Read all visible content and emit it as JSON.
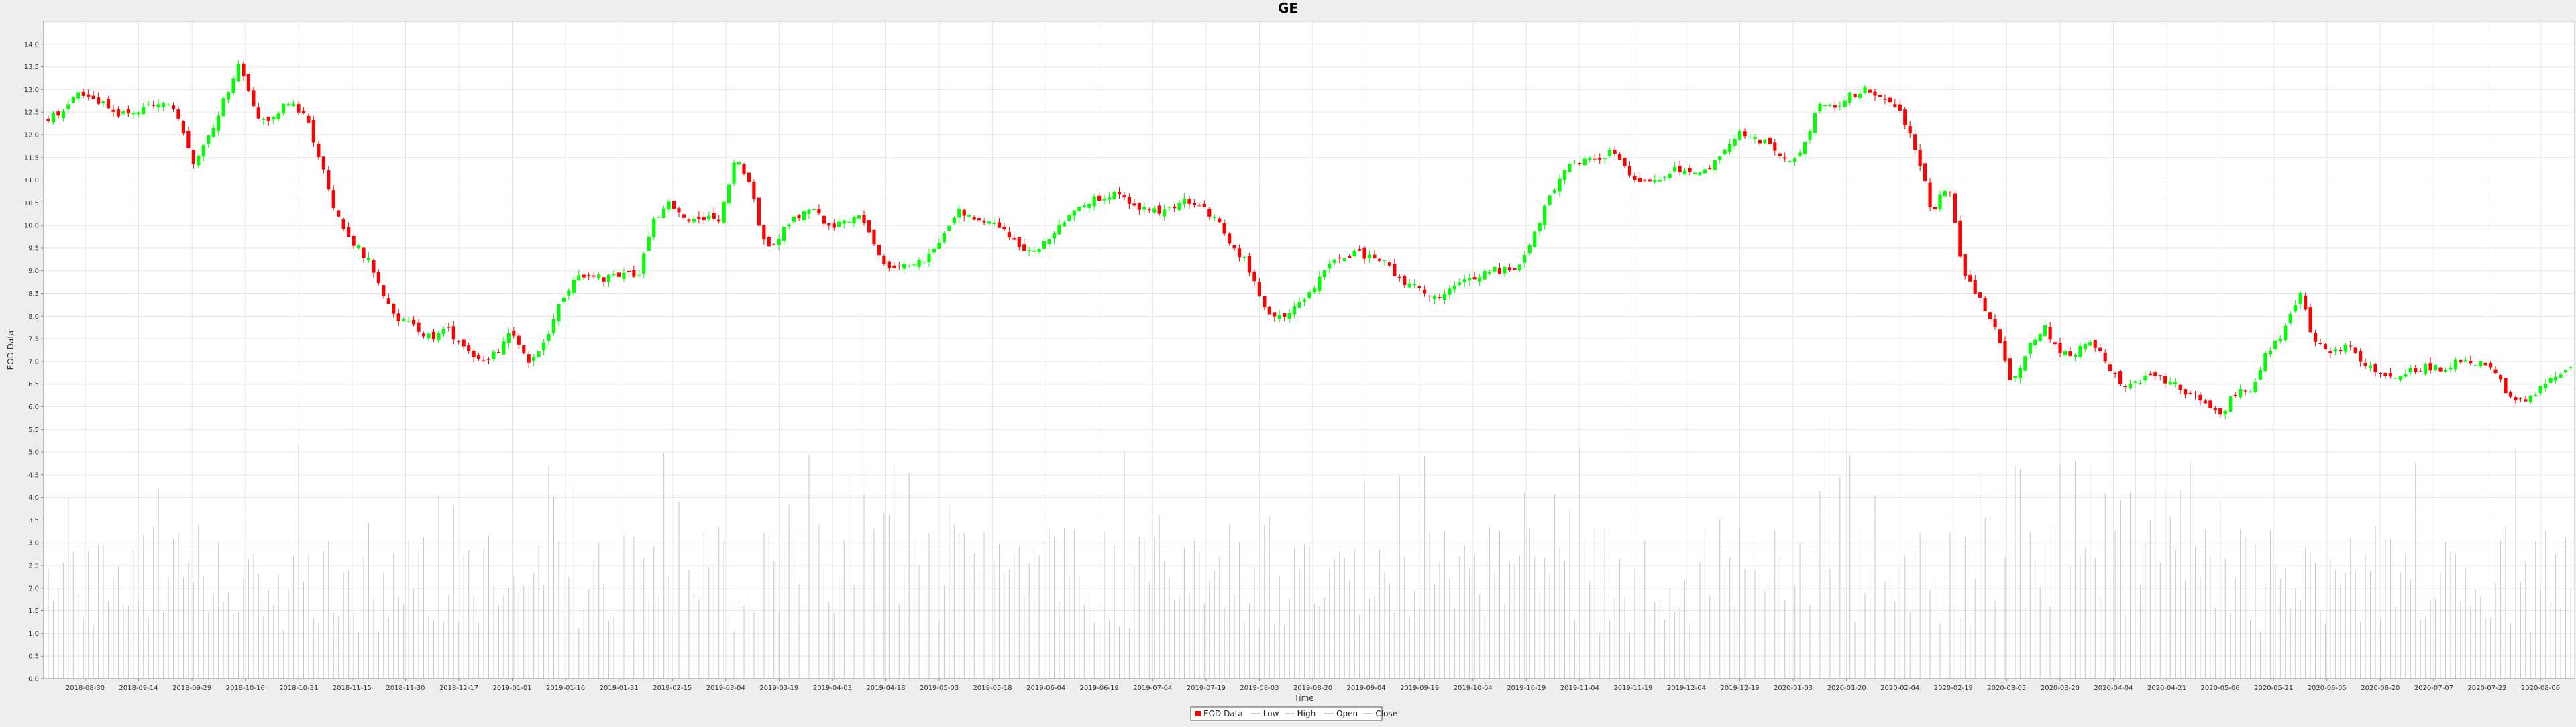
{
  "chart_data": {
    "type": "candlestick",
    "title": "GE",
    "xlabel": "Time",
    "ylabel": "EOD Data",
    "ylim": [
      0,
      14.5
    ],
    "y_ticks": [
      "0.0",
      "0.5",
      "1.0",
      "1.5",
      "2.0",
      "2.5",
      "3.0",
      "3.5",
      "4.0",
      "4.5",
      "5.0",
      "5.5",
      "6.0",
      "6.5",
      "7.0",
      "7.5",
      "8.0",
      "8.5",
      "9.0",
      "9.5",
      "10.0",
      "10.5",
      "11.0",
      "11.5",
      "12.0",
      "12.5",
      "13.0",
      "13.5",
      "14.0"
    ],
    "x_ticks": [
      "2018-08-30",
      "2018-09-14",
      "2018-09-29",
      "2018-10-16",
      "2018-10-31",
      "2018-11-15",
      "2018-11-30",
      "2018-12-17",
      "2019-01-01",
      "2019-01-16",
      "2019-01-31",
      "2019-02-15",
      "2019-03-04",
      "2019-03-19",
      "2019-04-03",
      "2019-04-18",
      "2019-05-03",
      "2019-05-18",
      "2019-06-04",
      "2019-06-19",
      "2019-07-04",
      "2019-07-19",
      "2019-08-03",
      "2019-08-20",
      "2019-09-04",
      "2019-09-19",
      "2019-10-04",
      "2019-10-19",
      "2019-11-04",
      "2019-11-19",
      "2019-12-04",
      "2019-12-19",
      "2020-01-03",
      "2020-01-20",
      "2020-02-04",
      "2020-02-19",
      "2020-03-05",
      "2020-03-20",
      "2020-04-04",
      "2020-04-21",
      "2020-05-06",
      "2020-05-21",
      "2020-06-05",
      "2020-06-20",
      "2020-07-07",
      "2020-07-22",
      "2020-08-06"
    ],
    "series_colors": {
      "up": "#00ff00",
      "down": "#ff0000",
      "volume": "#c8c8c8",
      "grid": "#e6e6e6"
    },
    "legend": {
      "placement": "bottom-center",
      "items": [
        {
          "name": "EOD Data",
          "color": "#ff0000"
        },
        {
          "name": "Low",
          "color": "#999999"
        },
        {
          "name": "High",
          "color": "#999999"
        },
        {
          "name": "Open",
          "color": "#999999"
        },
        {
          "name": "Close",
          "color": "#999999"
        }
      ]
    },
    "close_path": [
      12.3,
      12.6,
      12.9,
      12.8,
      12.5,
      12.4,
      12.6,
      12.7,
      12.5,
      11.4,
      11.9,
      12.8,
      13.6,
      12.4,
      12.3,
      12.7,
      12.5,
      11.5,
      10.3,
      9.6,
      9.3,
      8.5,
      7.9,
      7.8,
      7.5,
      7.7,
      7.3,
      7.0,
      7.2,
      7.6,
      7.0,
      7.3,
      8.2,
      8.8,
      8.9,
      8.8,
      9.0,
      8.9,
      10.2,
      10.5,
      10.1,
      10.2,
      10.1,
      11.5,
      10.8,
      9.4,
      9.9,
      10.2,
      10.3,
      10.0,
      10.1,
      10.2,
      9.3,
      9.0,
      9.2,
      9.3,
      9.8,
      10.3,
      10.2,
      10.1,
      9.8,
      9.5,
      9.5,
      9.8,
      10.3,
      10.5,
      10.6,
      10.7,
      10.4,
      10.3,
      10.3,
      10.6,
      10.5,
      10.2,
      9.6,
      9.2,
      8.3,
      7.9,
      8.2,
      8.5,
      9.1,
      9.3,
      9.4,
      9.3,
      9.1,
      8.7,
      8.6,
      8.4,
      8.6,
      8.8,
      9.0,
      9.0,
      9.1,
      9.7,
      10.6,
      11.3,
      11.4,
      11.5,
      11.6,
      11.2,
      10.9,
      11.1,
      11.3,
      11.1,
      11.2,
      11.6,
      12.0,
      11.9,
      11.7,
      11.4,
      11.8,
      12.7,
      12.6,
      12.9,
      13.0,
      12.8,
      12.5,
      11.7,
      10.3,
      10.9,
      8.9,
      8.4,
      7.8,
      6.5,
      7.3,
      7.8,
      7.1,
      7.2,
      7.5,
      6.9,
      6.5,
      6.6,
      6.7,
      6.5,
      6.3,
      6.1,
      5.8,
      6.3,
      6.4,
      7.2,
      7.6,
      8.5,
      7.4,
      7.1,
      7.4,
      7.0,
      6.7,
      6.6,
      6.8,
      6.9,
      6.8,
      7.0,
      7.0,
      6.9,
      6.3,
      6.1,
      6.4,
      6.7,
      6.9
    ]
  }
}
